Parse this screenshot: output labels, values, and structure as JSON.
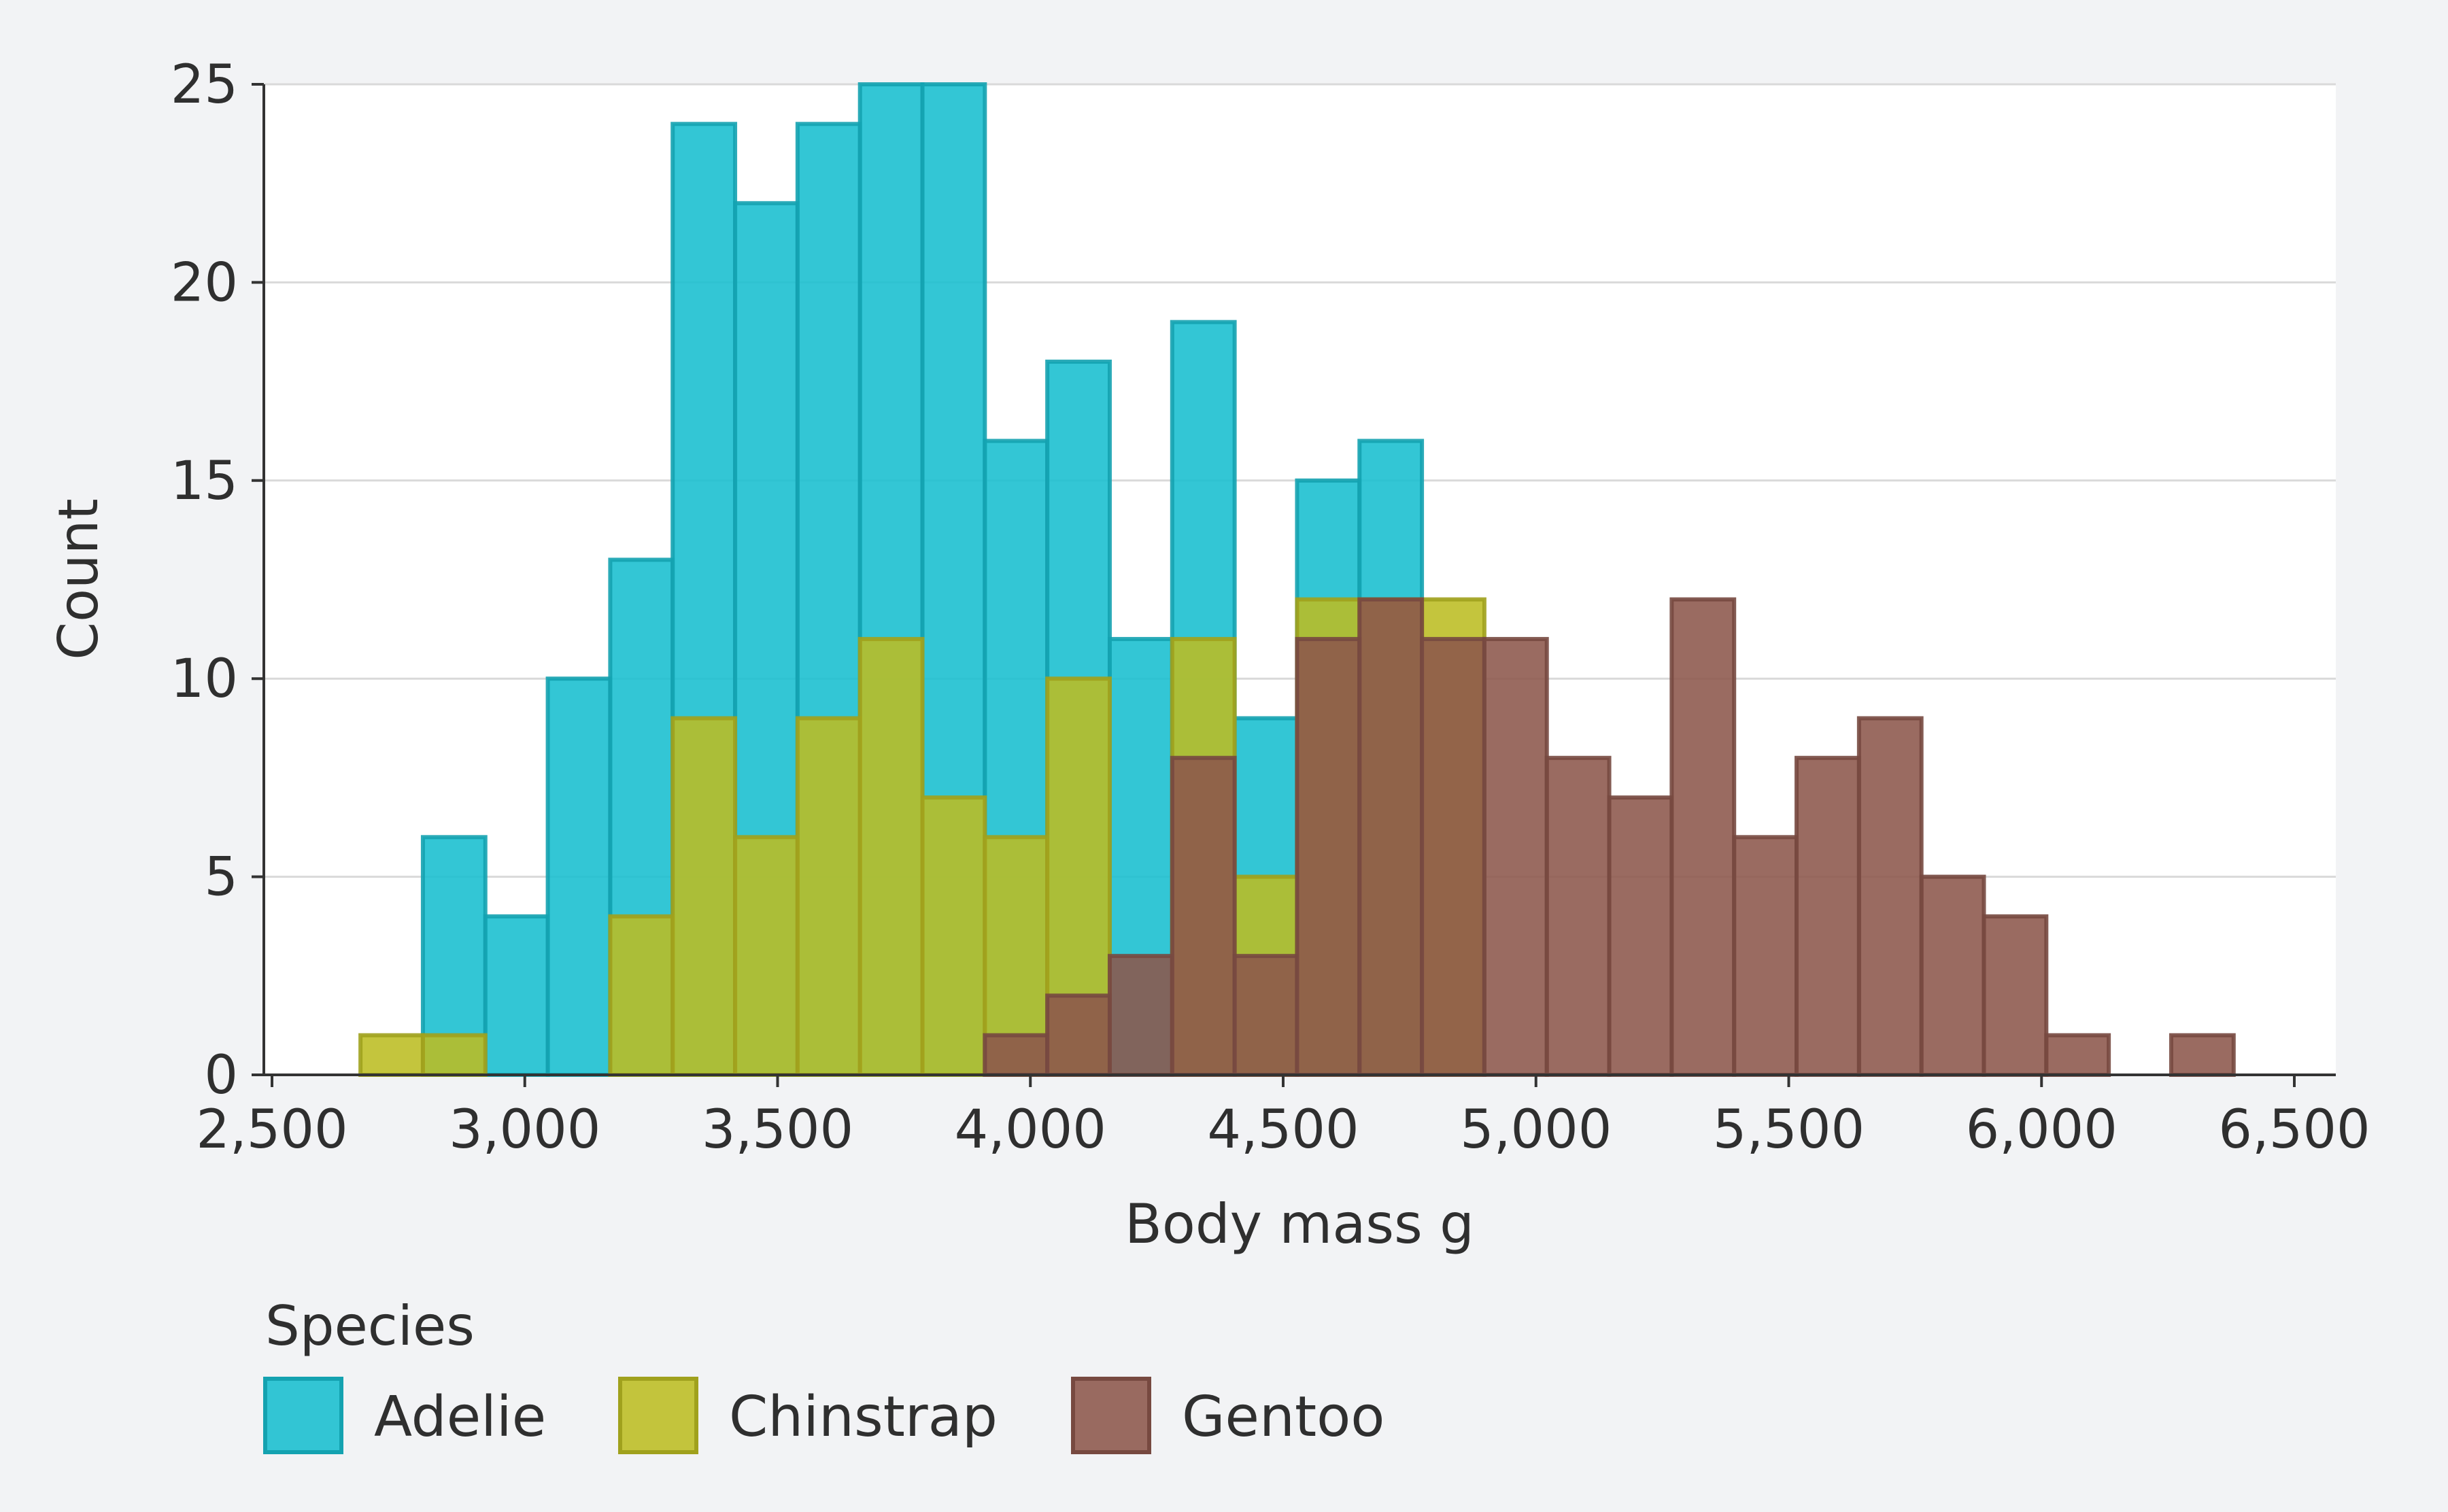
{
  "chart_data": {
    "type": "bar",
    "subtype": "histogram",
    "xlabel": "Body mass g",
    "ylabel": "Count",
    "xlim": [
      2500,
      6500
    ],
    "ylim": [
      0,
      25
    ],
    "xticks": [
      2500,
      3000,
      3500,
      4000,
      4500,
      5000,
      5500,
      6000,
      6500
    ],
    "xtick_labels": [
      "2,500",
      "3,000",
      "3,500",
      "4,000",
      "4,500",
      "5,000",
      "5,500",
      "6,000",
      "6,500"
    ],
    "yticks": [
      0,
      5,
      10,
      15,
      20,
      25
    ],
    "ytick_labels": [
      "0",
      "5",
      "10",
      "15",
      "20",
      "25"
    ],
    "grid": "horizontal",
    "bin_start": 2675,
    "bin_width": 123.5,
    "legend": {
      "title": "Species",
      "placement": "bottom-left"
    },
    "series": [
      {
        "name": "Adelie",
        "color": "#17becf",
        "counts": [
          0,
          6,
          4,
          10,
          13,
          24,
          22,
          24,
          25,
          25,
          16,
          18,
          11,
          19,
          9,
          15,
          16
        ]
      },
      {
        "name": "Chinstrap",
        "color": "#bcbd22",
        "counts": [
          1,
          1,
          0,
          0,
          4,
          9,
          6,
          9,
          11,
          7,
          6,
          10,
          0,
          11,
          5,
          12,
          12,
          12
        ]
      },
      {
        "name": "Gentoo",
        "color": "#8c564b",
        "counts": [
          0,
          0,
          0,
          0,
          0,
          0,
          0,
          0,
          0,
          0,
          1,
          2,
          3,
          8,
          3,
          11,
          12,
          11,
          11,
          8,
          7,
          12,
          6,
          8,
          9,
          5,
          4,
          1,
          0,
          1
        ]
      }
    ]
  }
}
